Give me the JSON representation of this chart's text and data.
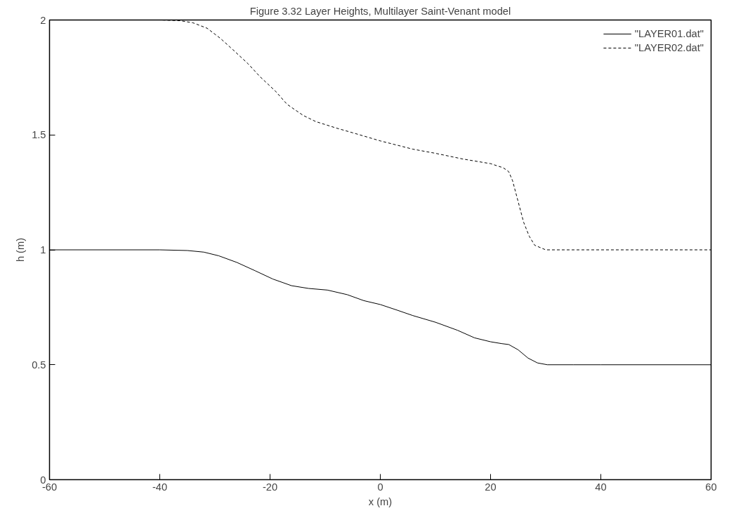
{
  "chart_data": {
    "type": "line",
    "title": "Figure 3.32 Layer Heights, Multilayer Saint-Venant model",
    "xlabel": "x (m)",
    "ylabel": "h (m)",
    "xlim": [
      -60,
      60
    ],
    "ylim": [
      0,
      2
    ],
    "xticks": [
      -60,
      -40,
      -20,
      0,
      20,
      40,
      60
    ],
    "yticks": [
      0,
      0.5,
      1,
      1.5,
      2
    ],
    "grid": false,
    "legend": "top right",
    "marker": "none",
    "series": [
      {
        "name": "\"LAYER01.dat\"",
        "color": "#000000",
        "line_style": "solid",
        "x": [
          -60,
          -40,
          -35,
          -32,
          -29.3,
          -26,
          -22.7,
          -19.5,
          -16.1,
          -13,
          -9.6,
          -6,
          -3,
          0,
          3,
          5.9,
          10,
          14,
          17.1,
          20,
          22,
          23.3,
          25,
          26.8,
          28.5,
          30.3,
          35,
          40,
          50,
          60
        ],
        "values": [
          1,
          1,
          0.997,
          0.99,
          0.974,
          0.945,
          0.909,
          0.873,
          0.844,
          0.832,
          0.825,
          0.805,
          0.779,
          0.762,
          0.738,
          0.714,
          0.685,
          0.65,
          0.617,
          0.6,
          0.592,
          0.588,
          0.565,
          0.529,
          0.508,
          0.5,
          0.5,
          0.5,
          0.5,
          0.5
        ]
      },
      {
        "name": "\"LAYER02.dat\"",
        "color": "#000000",
        "line_style": "dashed",
        "x": [
          -60,
          -40,
          -36.3,
          -34,
          -31.4,
          -29,
          -26.7,
          -24,
          -21.8,
          -19,
          -16.9,
          -14,
          -11.7,
          -8,
          -5.1,
          0,
          5.9,
          10,
          15,
          20,
          22.3,
          23.3,
          24,
          25,
          26,
          27,
          28,
          30,
          40,
          60
        ],
        "values": [
          2,
          2,
          1.997,
          1.988,
          1.964,
          1.92,
          1.87,
          1.81,
          1.753,
          1.69,
          1.633,
          1.585,
          1.558,
          1.53,
          1.51,
          1.474,
          1.438,
          1.42,
          1.395,
          1.375,
          1.357,
          1.34,
          1.3,
          1.21,
          1.12,
          1.06,
          1.02,
          1.0,
          1.0,
          1.0
        ]
      }
    ]
  }
}
